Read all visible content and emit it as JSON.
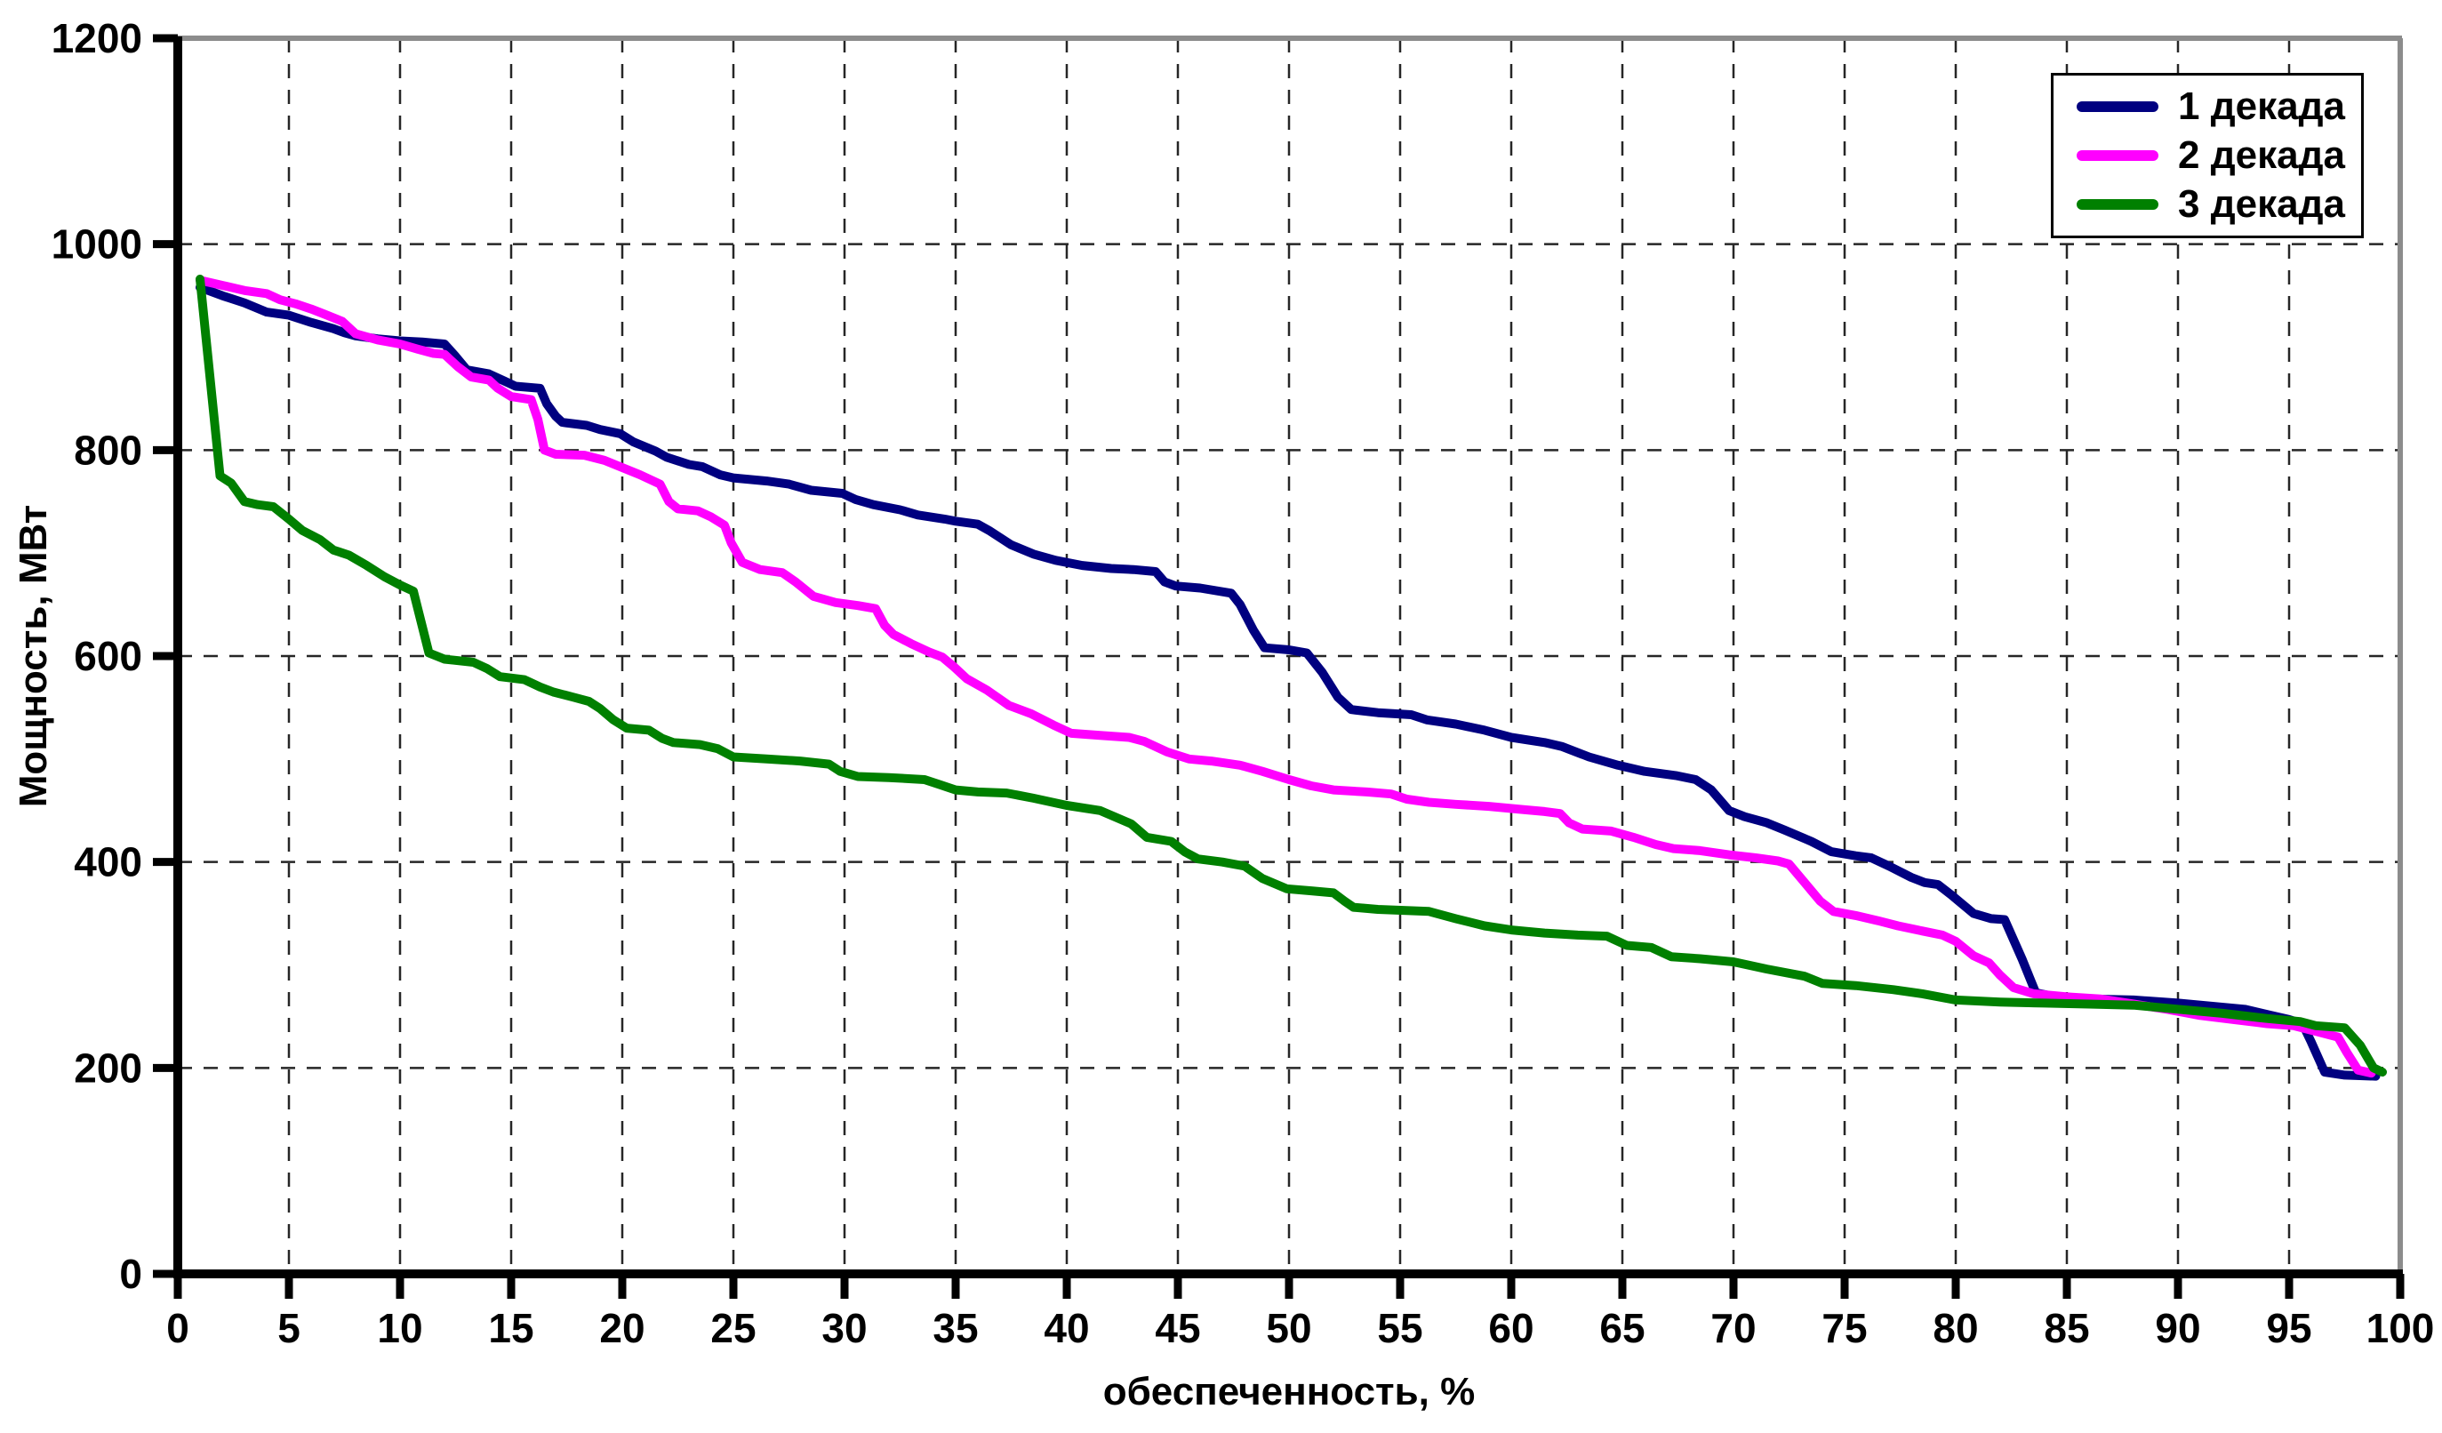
{
  "chart_data": {
    "type": "line",
    "title": "",
    "xlabel": "обеспеченность, %",
    "ylabel": "Мощность, МВт",
    "xlim": [
      0,
      100
    ],
    "ylim": [
      0,
      1200
    ],
    "x_ticks": [
      0,
      5,
      10,
      15,
      20,
      25,
      30,
      35,
      40,
      45,
      50,
      55,
      60,
      65,
      70,
      75,
      80,
      85,
      90,
      95,
      100
    ],
    "y_ticks": [
      0,
      200,
      400,
      600,
      800,
      1000,
      1200
    ],
    "grid": "dashed-both-directions",
    "legend_position": "top-right",
    "colors": {
      "background": "#ffffff",
      "axis": "#000000",
      "plot_border": "#8c8c8c",
      "gridline": "#262626",
      "tick_label": "#000000"
    },
    "series": [
      {
        "name": "1 декада",
        "color": "#000080",
        "points": [
          [
            1,
            958
          ],
          [
            2,
            950
          ],
          [
            3,
            943
          ],
          [
            4,
            934
          ],
          [
            5,
            931
          ],
          [
            6,
            924
          ],
          [
            7,
            918
          ],
          [
            7.5,
            914
          ],
          [
            8,
            911
          ],
          [
            9,
            908
          ],
          [
            10,
            906
          ],
          [
            11,
            905
          ],
          [
            12,
            903
          ],
          [
            12.5,
            891
          ],
          [
            13,
            878
          ],
          [
            14,
            874
          ],
          [
            14.7,
            867
          ],
          [
            15.2,
            862
          ],
          [
            16.3,
            860
          ],
          [
            16.6,
            845
          ],
          [
            17,
            833
          ],
          [
            17.3,
            827
          ],
          [
            18.4,
            824
          ],
          [
            19,
            820
          ],
          [
            19.9,
            816
          ],
          [
            20.5,
            808
          ],
          [
            21.5,
            799
          ],
          [
            22,
            793
          ],
          [
            23,
            786
          ],
          [
            23.6,
            784
          ],
          [
            24.4,
            776
          ],
          [
            25,
            773
          ],
          [
            26.5,
            770
          ],
          [
            27.5,
            767
          ],
          [
            28.5,
            761
          ],
          [
            29.9,
            758
          ],
          [
            30.5,
            752
          ],
          [
            31.3,
            747
          ],
          [
            32.5,
            742
          ],
          [
            33.3,
            737
          ],
          [
            34.5,
            733
          ],
          [
            35,
            731
          ],
          [
            36,
            728
          ],
          [
            36.5,
            722
          ],
          [
            37.5,
            708
          ],
          [
            38.5,
            699
          ],
          [
            39.5,
            693
          ],
          [
            40.7,
            688
          ],
          [
            42,
            685
          ],
          [
            43,
            684
          ],
          [
            44,
            682
          ],
          [
            44.4,
            672
          ],
          [
            44.9,
            668
          ],
          [
            46,
            666
          ],
          [
            47.4,
            661
          ],
          [
            47.8,
            650
          ],
          [
            48.4,
            625
          ],
          [
            48.9,
            608
          ],
          [
            50,
            606
          ],
          [
            50.8,
            603
          ],
          [
            51.5,
            584
          ],
          [
            52.2,
            560
          ],
          [
            52.8,
            548
          ],
          [
            54,
            545
          ],
          [
            55.5,
            543
          ],
          [
            56.2,
            538
          ],
          [
            57.5,
            534
          ],
          [
            58.8,
            528
          ],
          [
            60,
            521
          ],
          [
            61.5,
            516
          ],
          [
            62.3,
            512
          ],
          [
            63.5,
            502
          ],
          [
            64.8,
            494
          ],
          [
            66,
            488
          ],
          [
            67.4,
            484
          ],
          [
            68.3,
            480
          ],
          [
            69,
            470
          ],
          [
            69.8,
            450
          ],
          [
            70.5,
            444
          ],
          [
            71.5,
            438
          ],
          [
            72.3,
            431
          ],
          [
            73.5,
            420
          ],
          [
            74.4,
            410
          ],
          [
            75.5,
            406
          ],
          [
            76.2,
            404
          ],
          [
            77,
            396
          ],
          [
            78,
            385
          ],
          [
            78.6,
            380
          ],
          [
            79.2,
            378
          ],
          [
            79.8,
            368
          ],
          [
            80.8,
            350
          ],
          [
            81.6,
            345
          ],
          [
            82.2,
            344
          ],
          [
            83,
            305
          ],
          [
            83.6,
            273
          ],
          [
            84.5,
            269
          ],
          [
            86,
            267
          ],
          [
            88,
            266
          ],
          [
            90,
            263
          ],
          [
            91.5,
            260
          ],
          [
            93,
            257
          ],
          [
            94,
            252
          ],
          [
            95,
            247
          ],
          [
            95.6,
            243
          ],
          [
            96,
            225
          ],
          [
            96.6,
            196
          ],
          [
            97.5,
            193
          ],
          [
            98.9,
            192
          ]
        ]
      },
      {
        "name": "2 декада",
        "color": "#FF00FF",
        "points": [
          [
            1,
            965
          ],
          [
            2,
            960
          ],
          [
            3,
            955
          ],
          [
            4,
            952
          ],
          [
            4.6,
            946
          ],
          [
            5.3,
            942
          ],
          [
            6,
            937
          ],
          [
            6.6,
            932
          ],
          [
            7.4,
            925
          ],
          [
            8,
            913
          ],
          [
            9,
            907
          ],
          [
            10,
            903
          ],
          [
            10.8,
            898
          ],
          [
            11.5,
            894
          ],
          [
            12,
            893
          ],
          [
            12.6,
            881
          ],
          [
            13.2,
            871
          ],
          [
            14,
            868
          ],
          [
            14.4,
            860
          ],
          [
            15,
            852
          ],
          [
            15.9,
            849
          ],
          [
            16.2,
            830
          ],
          [
            16.5,
            800
          ],
          [
            17,
            796
          ],
          [
            18.3,
            795
          ],
          [
            19.2,
            790
          ],
          [
            20,
            783
          ],
          [
            20.8,
            776
          ],
          [
            21.7,
            767
          ],
          [
            22.1,
            750
          ],
          [
            22.5,
            743
          ],
          [
            23.4,
            741
          ],
          [
            24,
            735
          ],
          [
            24.6,
            727
          ],
          [
            24.9,
            710
          ],
          [
            25.4,
            691
          ],
          [
            26.2,
            684
          ],
          [
            27.2,
            681
          ],
          [
            27.8,
            672
          ],
          [
            28.6,
            658
          ],
          [
            29.6,
            652
          ],
          [
            30.6,
            649
          ],
          [
            31.4,
            646
          ],
          [
            31.8,
            630
          ],
          [
            32.2,
            621
          ],
          [
            33,
            612
          ],
          [
            33.8,
            604
          ],
          [
            34.4,
            599
          ],
          [
            34.9,
            590
          ],
          [
            35.5,
            578
          ],
          [
            36.4,
            567
          ],
          [
            37.4,
            552
          ],
          [
            38.4,
            544
          ],
          [
            39.4,
            533
          ],
          [
            40.2,
            525
          ],
          [
            41.5,
            523
          ],
          [
            42.8,
            521
          ],
          [
            43.5,
            517
          ],
          [
            44.5,
            507
          ],
          [
            45.5,
            500
          ],
          [
            46.5,
            498
          ],
          [
            47.8,
            494
          ],
          [
            48.8,
            488
          ],
          [
            50,
            480
          ],
          [
            51,
            474
          ],
          [
            52,
            470
          ],
          [
            53.5,
            468
          ],
          [
            54.6,
            466
          ],
          [
            55.3,
            461
          ],
          [
            56.3,
            458
          ],
          [
            57.5,
            456
          ],
          [
            59,
            454
          ],
          [
            60.5,
            451
          ],
          [
            61.5,
            449
          ],
          [
            62.2,
            447
          ],
          [
            62.6,
            438
          ],
          [
            63.2,
            432
          ],
          [
            64.5,
            430
          ],
          [
            65.5,
            424
          ],
          [
            66.5,
            417
          ],
          [
            67.3,
            413
          ],
          [
            68.5,
            411
          ],
          [
            69.8,
            407
          ],
          [
            71,
            404
          ],
          [
            72,
            401
          ],
          [
            72.5,
            398
          ],
          [
            73.2,
            380
          ],
          [
            73.9,
            362
          ],
          [
            74.5,
            352
          ],
          [
            75.5,
            348
          ],
          [
            76.5,
            343
          ],
          [
            77.4,
            338
          ],
          [
            78.5,
            333
          ],
          [
            79.4,
            329
          ],
          [
            80,
            323
          ],
          [
            80.8,
            309
          ],
          [
            81.5,
            302
          ],
          [
            82,
            290
          ],
          [
            82.6,
            278
          ],
          [
            83.5,
            272
          ],
          [
            85,
            269
          ],
          [
            86.5,
            267
          ],
          [
            88,
            262
          ],
          [
            89.5,
            257
          ],
          [
            91,
            251
          ],
          [
            92.5,
            247
          ],
          [
            94,
            243
          ],
          [
            95.2,
            241
          ],
          [
            96.3,
            235
          ],
          [
            97.2,
            230
          ],
          [
            97.6,
            215
          ],
          [
            98.1,
            198
          ],
          [
            98.7,
            195
          ]
        ]
      },
      {
        "name": "3 декада",
        "color": "#008000",
        "points": [
          [
            1,
            966
          ],
          [
            1.9,
            775
          ],
          [
            2.4,
            768
          ],
          [
            3,
            750
          ],
          [
            3.6,
            747
          ],
          [
            4.3,
            745
          ],
          [
            5,
            733
          ],
          [
            5.6,
            722
          ],
          [
            6.4,
            713
          ],
          [
            7,
            703
          ],
          [
            7.7,
            698
          ],
          [
            8.5,
            688
          ],
          [
            9.3,
            677
          ],
          [
            10,
            669
          ],
          [
            10.6,
            663
          ],
          [
            11.3,
            603
          ],
          [
            12,
            597
          ],
          [
            13.3,
            594
          ],
          [
            13.9,
            588
          ],
          [
            14.5,
            580
          ],
          [
            15.6,
            577
          ],
          [
            16.3,
            570
          ],
          [
            16.9,
            565
          ],
          [
            17.8,
            560
          ],
          [
            18.5,
            556
          ],
          [
            19,
            549
          ],
          [
            19.6,
            538
          ],
          [
            20.2,
            530
          ],
          [
            21.2,
            528
          ],
          [
            21.8,
            520
          ],
          [
            22.3,
            516
          ],
          [
            23.5,
            514
          ],
          [
            24.3,
            510
          ],
          [
            25,
            502
          ],
          [
            26.5,
            500
          ],
          [
            28,
            498
          ],
          [
            29.3,
            495
          ],
          [
            29.8,
            488
          ],
          [
            30.6,
            483
          ],
          [
            32,
            482
          ],
          [
            33.6,
            480
          ],
          [
            34.3,
            475
          ],
          [
            35,
            470
          ],
          [
            36,
            468
          ],
          [
            37.3,
            467
          ],
          [
            38.5,
            462
          ],
          [
            40,
            455
          ],
          [
            41.5,
            450
          ],
          [
            42.9,
            437
          ],
          [
            43.6,
            424
          ],
          [
            44.7,
            420
          ],
          [
            45.3,
            410
          ],
          [
            45.9,
            403
          ],
          [
            47,
            400
          ],
          [
            48,
            396
          ],
          [
            48.8,
            384
          ],
          [
            49.9,
            374
          ],
          [
            51,
            372
          ],
          [
            52,
            370
          ],
          [
            52.5,
            362
          ],
          [
            52.9,
            356
          ],
          [
            54,
            354
          ],
          [
            56.3,
            352
          ],
          [
            57.5,
            345
          ],
          [
            58.8,
            338
          ],
          [
            60,
            334
          ],
          [
            61.5,
            331
          ],
          [
            63,
            329
          ],
          [
            64.3,
            328
          ],
          [
            65.2,
            319
          ],
          [
            66.3,
            317
          ],
          [
            67.2,
            308
          ],
          [
            68.5,
            306
          ],
          [
            70,
            303
          ],
          [
            71.5,
            296
          ],
          [
            73.2,
            289
          ],
          [
            74,
            282
          ],
          [
            75.5,
            280
          ],
          [
            77.2,
            276
          ],
          [
            78.5,
            272
          ],
          [
            80,
            266
          ],
          [
            82,
            264
          ],
          [
            84,
            263
          ],
          [
            86,
            262
          ],
          [
            88,
            261
          ],
          [
            90,
            257
          ],
          [
            92,
            253
          ],
          [
            94,
            248
          ],
          [
            95.5,
            245
          ],
          [
            96.2,
            241
          ],
          [
            97.5,
            239
          ],
          [
            98.2,
            222
          ],
          [
            98.8,
            200
          ],
          [
            99.2,
            196
          ]
        ]
      }
    ]
  }
}
